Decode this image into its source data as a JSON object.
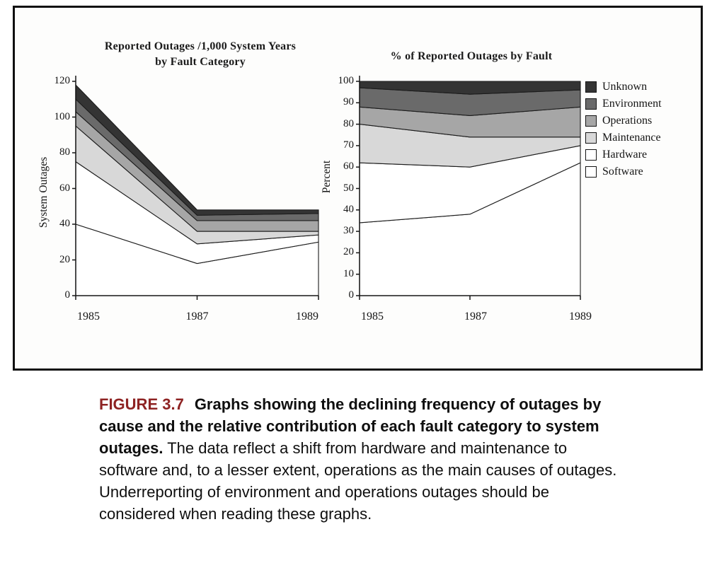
{
  "chart_data": [
    {
      "type": "area",
      "stacked": true,
      "title": "Reported Outages /1,000 System Years by Fault Category",
      "title_lines": [
        "Reported Outages /1,000 System Years",
        "by Fault Category"
      ],
      "ylabel": "System Outages",
      "xlabel": "",
      "categories": [
        "1985",
        "1987",
        "1989"
      ],
      "ylim": [
        0,
        120
      ],
      "ytick_step": 20,
      "grid": false,
      "series": [
        {
          "name": "Software",
          "values": [
            40,
            18,
            30
          ],
          "color": "#ffffff"
        },
        {
          "name": "Hardware",
          "values": [
            35,
            11,
            4
          ],
          "color": "#ffffff"
        },
        {
          "name": "Maintenance",
          "values": [
            20,
            7,
            2
          ],
          "color": "#d8d8d8"
        },
        {
          "name": "Operations",
          "values": [
            8,
            6,
            6
          ],
          "color": "#a6a6a6"
        },
        {
          "name": "Environment",
          "values": [
            7,
            3,
            4
          ],
          "color": "#6a6a6a"
        },
        {
          "name": "Unknown",
          "values": [
            8,
            3,
            2
          ],
          "color": "#343434"
        }
      ]
    },
    {
      "type": "area",
      "stacked": true,
      "title": "% of Reported Outages by Fault",
      "title_lines": [
        "% of Reported Outages by  Fault"
      ],
      "ylabel": "Percent",
      "xlabel": "",
      "categories": [
        "1985",
        "1987",
        "1989"
      ],
      "ylim": [
        0,
        100
      ],
      "ytick_step": 10,
      "grid": false,
      "legend_position": "right",
      "series": [
        {
          "name": "Software",
          "values": [
            34,
            38,
            62
          ],
          "color": "#ffffff"
        },
        {
          "name": "Hardware",
          "values": [
            28,
            22,
            8
          ],
          "color": "#ffffff"
        },
        {
          "name": "Maintenance",
          "values": [
            18,
            14,
            4
          ],
          "color": "#d8d8d8"
        },
        {
          "name": "Operations",
          "values": [
            8,
            10,
            14
          ],
          "color": "#a6a6a6"
        },
        {
          "name": "Environment",
          "values": [
            9,
            10,
            8
          ],
          "color": "#6a6a6a"
        },
        {
          "name": "Unknown",
          "values": [
            3,
            6,
            4
          ],
          "color": "#343434"
        }
      ]
    }
  ],
  "legend": {
    "items": [
      {
        "label": "Unknown",
        "color": "#343434"
      },
      {
        "label": "Environment",
        "color": "#6a6a6a"
      },
      {
        "label": "Operations",
        "color": "#a6a6a6"
      },
      {
        "label": "Maintenance",
        "color": "#d8d8d8"
      },
      {
        "label": "Hardware",
        "color": "#ffffff"
      },
      {
        "label": "Software",
        "color": "#ffffff"
      }
    ]
  },
  "caption": {
    "label": "FIGURE 3.7",
    "label_color": "#8e2323",
    "bold_text": "Graphs showing the declining frequency of outages by cause and the relative contribution of each fault category to system outages.",
    "body_text": "The data reflect a shift from hardware and maintenance to software and, to a lesser extent, operations as the main causes of outages. Underreporting of environment and operations outages should be considered when reading these graphs."
  }
}
